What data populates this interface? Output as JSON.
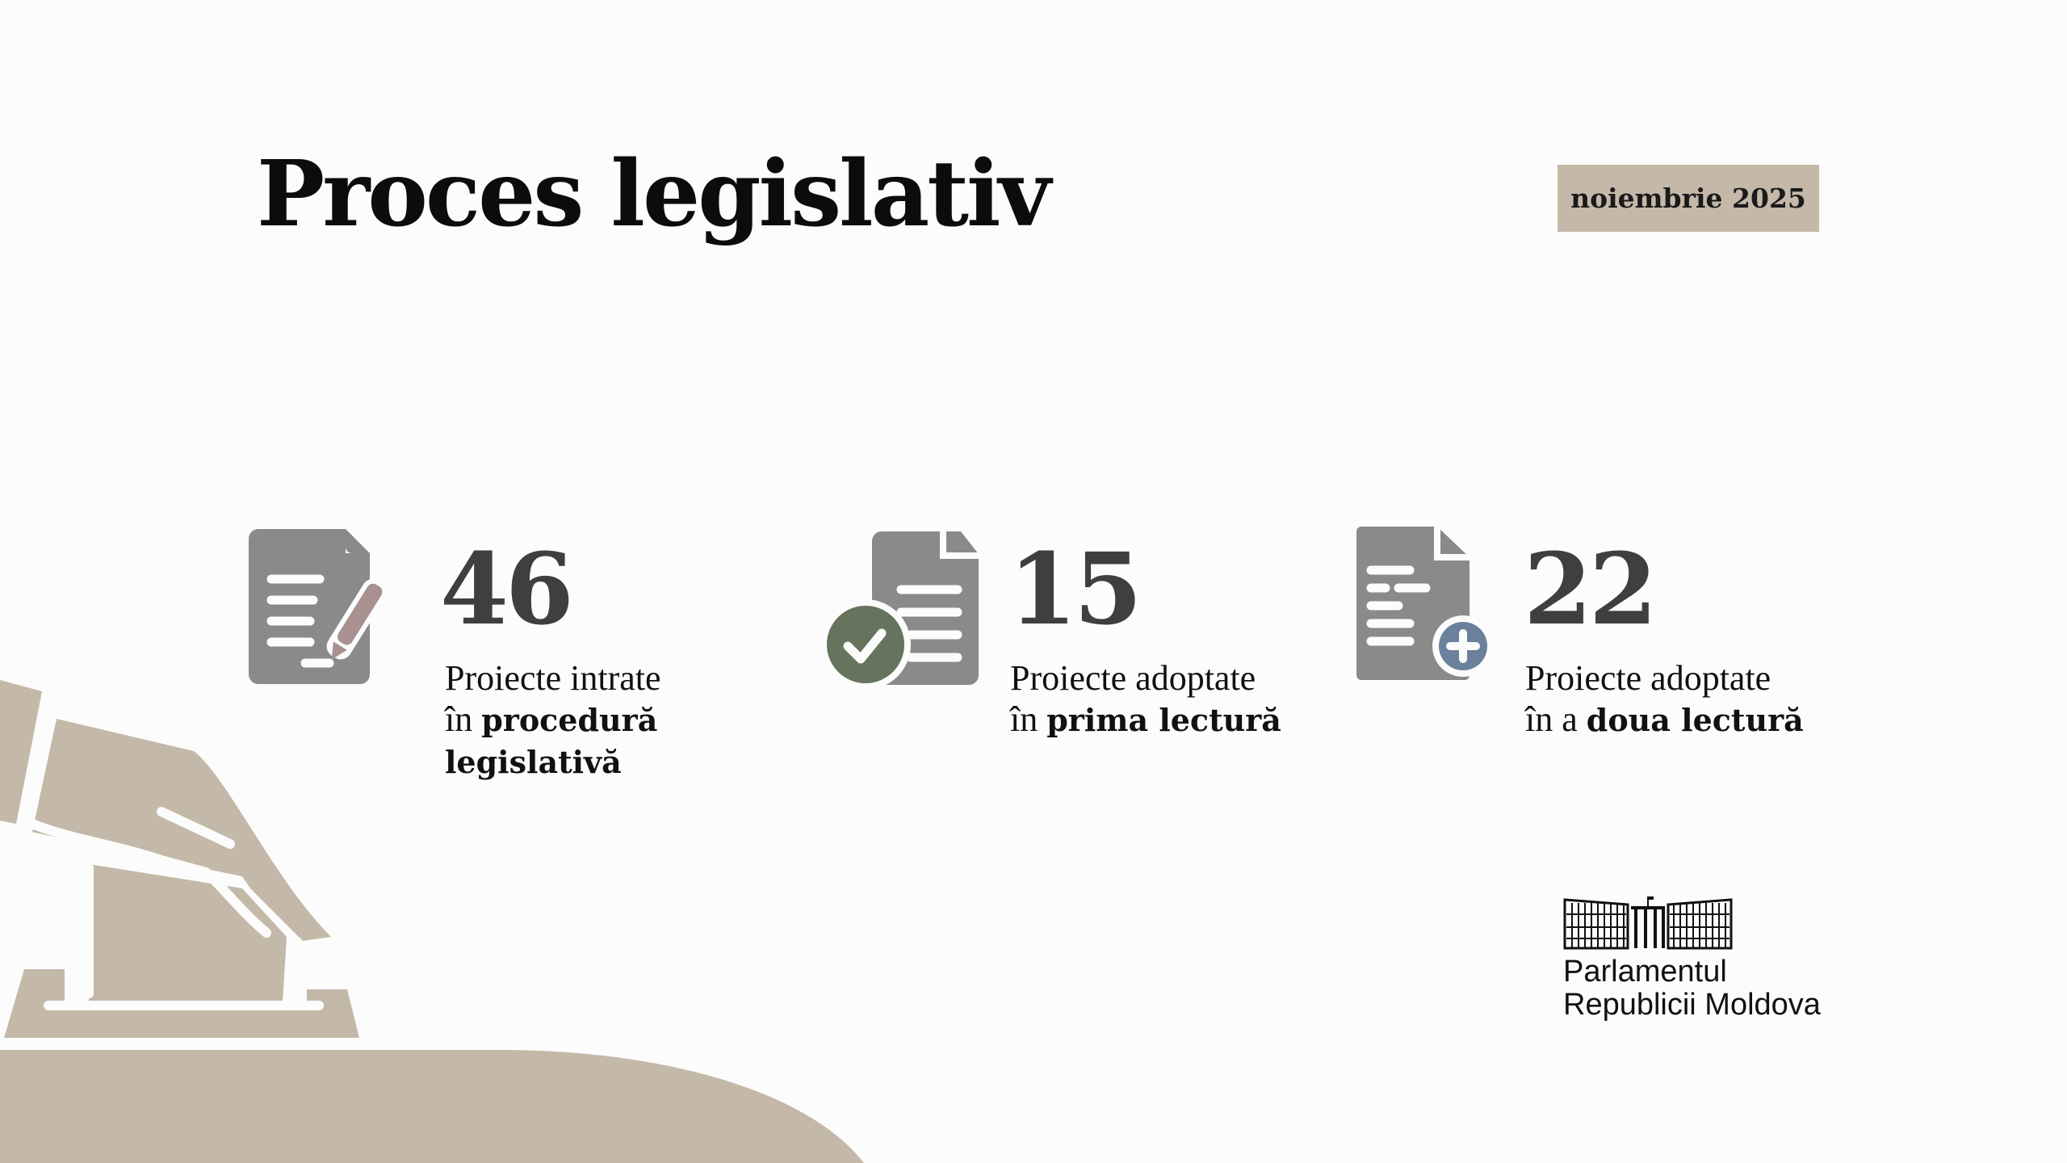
{
  "header": {
    "title": "Proces legislativ",
    "period": "noiembrie 2025"
  },
  "stats": [
    {
      "value": "46",
      "line1": "Proiecte intrate",
      "line2_prefix": "în ",
      "line2_bold": "procedură",
      "line3_bold": "legislativă",
      "icon": "document-edit-icon",
      "accent": "#a89190"
    },
    {
      "value": "15",
      "line1": "Proiecte adoptate",
      "line2_prefix": "în ",
      "line2_bold": "prima lectură",
      "icon": "document-check-icon",
      "accent": "#66735d"
    },
    {
      "value": "22",
      "line1": "Proiecte adoptate",
      "line2_prefix": "în a ",
      "line2_bold": "doua lectură",
      "icon": "document-plus-icon",
      "accent": "#6a809b"
    }
  ],
  "logo": {
    "line1": "Parlamentul",
    "line2": "Republicii Moldova"
  },
  "colors": {
    "icon_gray": "#8a8a8a",
    "badge": "#c5b8a9",
    "decor": "#c4b8a8",
    "number": "#3f3f3f"
  }
}
